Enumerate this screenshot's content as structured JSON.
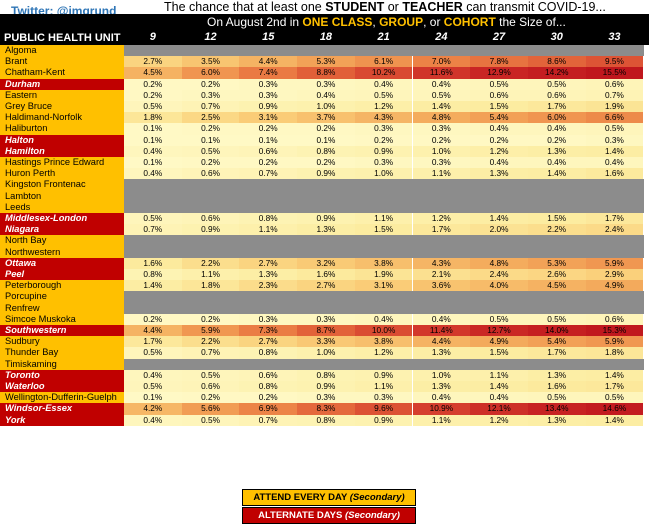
{
  "twitter": "Twitter: @imgrund",
  "title": {
    "p1": "The chance that at least one ",
    "b1": "STUDENT",
    "p2": " or ",
    "b2": "TEACHER",
    "p3": " can transmit COVID-19..."
  },
  "subtitle": {
    "p1": "On August 2nd in ",
    "h1": "ONE CLASS",
    "s1": ", ",
    "h2": "GROUP",
    "s2": ", or ",
    "h3": "COHORT",
    "p2": " the Size of..."
  },
  "phu_label": "PUBLIC HEALTH UNIT",
  "sizes": [
    "9",
    "12",
    "15",
    "18",
    "21",
    "24",
    "27",
    "30",
    "33"
  ],
  "legend": {
    "every_main": "ATTEND EVERY DAY ",
    "every_sub": "(Secondary)",
    "alt_main": "ALTERNATE DAYS ",
    "alt_sub": "(Secondary)"
  },
  "colors": {
    "attend_every_day": "#ffc000",
    "alternate_days": "#c00000",
    "no_data": "#8c8c8c"
  },
  "rows": [
    {
      "name": "Algoma",
      "type": "every",
      "values": []
    },
    {
      "name": "Brant",
      "type": "every",
      "values": [
        "2.7%",
        "3.5%",
        "4.4%",
        "5.3%",
        "6.1%",
        "7.0%",
        "7.8%",
        "8.6%",
        "9.5%"
      ]
    },
    {
      "name": "Chatham-Kent",
      "type": "every",
      "values": [
        "4.5%",
        "6.0%",
        "7.4%",
        "8.8%",
        "10.2%",
        "11.6%",
        "12.9%",
        "14.2%",
        "15.5%"
      ]
    },
    {
      "name": "Durham",
      "type": "alt",
      "values": [
        "0.2%",
        "0.2%",
        "0.3%",
        "0.3%",
        "0.4%",
        "0.4%",
        "0.5%",
        "0.5%",
        "0.6%"
      ]
    },
    {
      "name": "Eastern",
      "type": "every",
      "values": [
        "0.2%",
        "0.3%",
        "0.3%",
        "0.4%",
        "0.5%",
        "0.5%",
        "0.6%",
        "0.6%",
        "0.7%"
      ]
    },
    {
      "name": "Grey Bruce",
      "type": "every",
      "values": [
        "0.5%",
        "0.7%",
        "0.9%",
        "1.0%",
        "1.2%",
        "1.4%",
        "1.5%",
        "1.7%",
        "1.9%"
      ]
    },
    {
      "name": "Haldimand-Norfolk",
      "type": "every",
      "values": [
        "1.8%",
        "2.5%",
        "3.1%",
        "3.7%",
        "4.3%",
        "4.8%",
        "5.4%",
        "6.0%",
        "6.6%"
      ]
    },
    {
      "name": "Haliburton",
      "type": "every",
      "values": [
        "0.1%",
        "0.2%",
        "0.2%",
        "0.2%",
        "0.3%",
        "0.3%",
        "0.4%",
        "0.4%",
        "0.5%"
      ]
    },
    {
      "name": "Halton",
      "type": "alt",
      "values": [
        "0.1%",
        "0.1%",
        "0.1%",
        "0.1%",
        "0.2%",
        "0.2%",
        "0.2%",
        "0.2%",
        "0.3%"
      ]
    },
    {
      "name": "Hamilton",
      "type": "alt",
      "values": [
        "0.4%",
        "0.5%",
        "0.6%",
        "0.8%",
        "0.9%",
        "1.0%",
        "1.2%",
        "1.3%",
        "1.4%"
      ]
    },
    {
      "name": "Hastings Prince Edward",
      "type": "every",
      "values": [
        "0.1%",
        "0.2%",
        "0.2%",
        "0.2%",
        "0.3%",
        "0.3%",
        "0.4%",
        "0.4%",
        "0.4%"
      ]
    },
    {
      "name": "Huron Perth",
      "type": "every",
      "values": [
        "0.4%",
        "0.6%",
        "0.7%",
        "0.9%",
        "1.0%",
        "1.1%",
        "1.3%",
        "1.4%",
        "1.6%"
      ]
    },
    {
      "name": "Kingston Frontenac",
      "type": "every",
      "values": []
    },
    {
      "name": "Lambton",
      "type": "every",
      "values": []
    },
    {
      "name": "Leeds",
      "type": "every",
      "values": []
    },
    {
      "name": "Middlesex-London",
      "type": "alt",
      "values": [
        "0.5%",
        "0.6%",
        "0.8%",
        "0.9%",
        "1.1%",
        "1.2%",
        "1.4%",
        "1.5%",
        "1.7%"
      ]
    },
    {
      "name": "Niagara",
      "type": "alt",
      "values": [
        "0.7%",
        "0.9%",
        "1.1%",
        "1.3%",
        "1.5%",
        "1.7%",
        "2.0%",
        "2.2%",
        "2.4%"
      ]
    },
    {
      "name": "North Bay",
      "type": "every",
      "values": []
    },
    {
      "name": "Northwestern",
      "type": "every",
      "values": []
    },
    {
      "name": "Ottawa",
      "type": "alt",
      "values": [
        "1.6%",
        "2.2%",
        "2.7%",
        "3.2%",
        "3.8%",
        "4.3%",
        "4.8%",
        "5.3%",
        "5.9%"
      ]
    },
    {
      "name": "Peel",
      "type": "alt",
      "values": [
        "0.8%",
        "1.1%",
        "1.3%",
        "1.6%",
        "1.9%",
        "2.1%",
        "2.4%",
        "2.6%",
        "2.9%"
      ]
    },
    {
      "name": "Peterborough",
      "type": "every",
      "values": [
        "1.4%",
        "1.8%",
        "2.3%",
        "2.7%",
        "3.1%",
        "3.6%",
        "4.0%",
        "4.5%",
        "4.9%"
      ]
    },
    {
      "name": "Porcupine",
      "type": "every",
      "values": []
    },
    {
      "name": "Renfrew",
      "type": "every",
      "values": []
    },
    {
      "name": "Simcoe Muskoka",
      "type": "every",
      "values": [
        "0.2%",
        "0.2%",
        "0.3%",
        "0.3%",
        "0.4%",
        "0.4%",
        "0.5%",
        "0.5%",
        "0.6%"
      ]
    },
    {
      "name": "Southwestern",
      "type": "alt",
      "values": [
        "4.4%",
        "5.9%",
        "7.3%",
        "8.7%",
        "10.0%",
        "11.4%",
        "12.7%",
        "14.0%",
        "15.3%"
      ]
    },
    {
      "name": "Sudbury",
      "type": "every",
      "values": [
        "1.7%",
        "2.2%",
        "2.7%",
        "3.3%",
        "3.8%",
        "4.4%",
        "4.9%",
        "5.4%",
        "5.9%"
      ]
    },
    {
      "name": "Thunder Bay",
      "type": "every",
      "values": [
        "0.5%",
        "0.7%",
        "0.8%",
        "1.0%",
        "1.2%",
        "1.3%",
        "1.5%",
        "1.7%",
        "1.8%"
      ]
    },
    {
      "name": "Timiskaming",
      "type": "every",
      "values": []
    },
    {
      "name": "Toronto",
      "type": "alt",
      "values": [
        "0.4%",
        "0.5%",
        "0.6%",
        "0.8%",
        "0.9%",
        "1.0%",
        "1.1%",
        "1.3%",
        "1.4%"
      ]
    },
    {
      "name": "Waterloo",
      "type": "alt",
      "values": [
        "0.5%",
        "0.6%",
        "0.8%",
        "0.9%",
        "1.1%",
        "1.3%",
        "1.4%",
        "1.6%",
        "1.7%"
      ]
    },
    {
      "name": "Wellington-Dufferin-Guelph",
      "type": "every",
      "values": [
        "0.1%",
        "0.2%",
        "0.2%",
        "0.3%",
        "0.3%",
        "0.4%",
        "0.4%",
        "0.5%",
        "0.5%"
      ]
    },
    {
      "name": "Windsor-Essex",
      "type": "alt",
      "values": [
        "4.2%",
        "5.6%",
        "6.9%",
        "8.3%",
        "9.6%",
        "10.9%",
        "12.1%",
        "13.4%",
        "14.6%"
      ]
    },
    {
      "name": "York",
      "type": "alt",
      "values": [
        "0.4%",
        "0.5%",
        "0.7%",
        "0.8%",
        "0.9%",
        "1.1%",
        "1.2%",
        "1.3%",
        "1.4%"
      ]
    }
  ]
}
